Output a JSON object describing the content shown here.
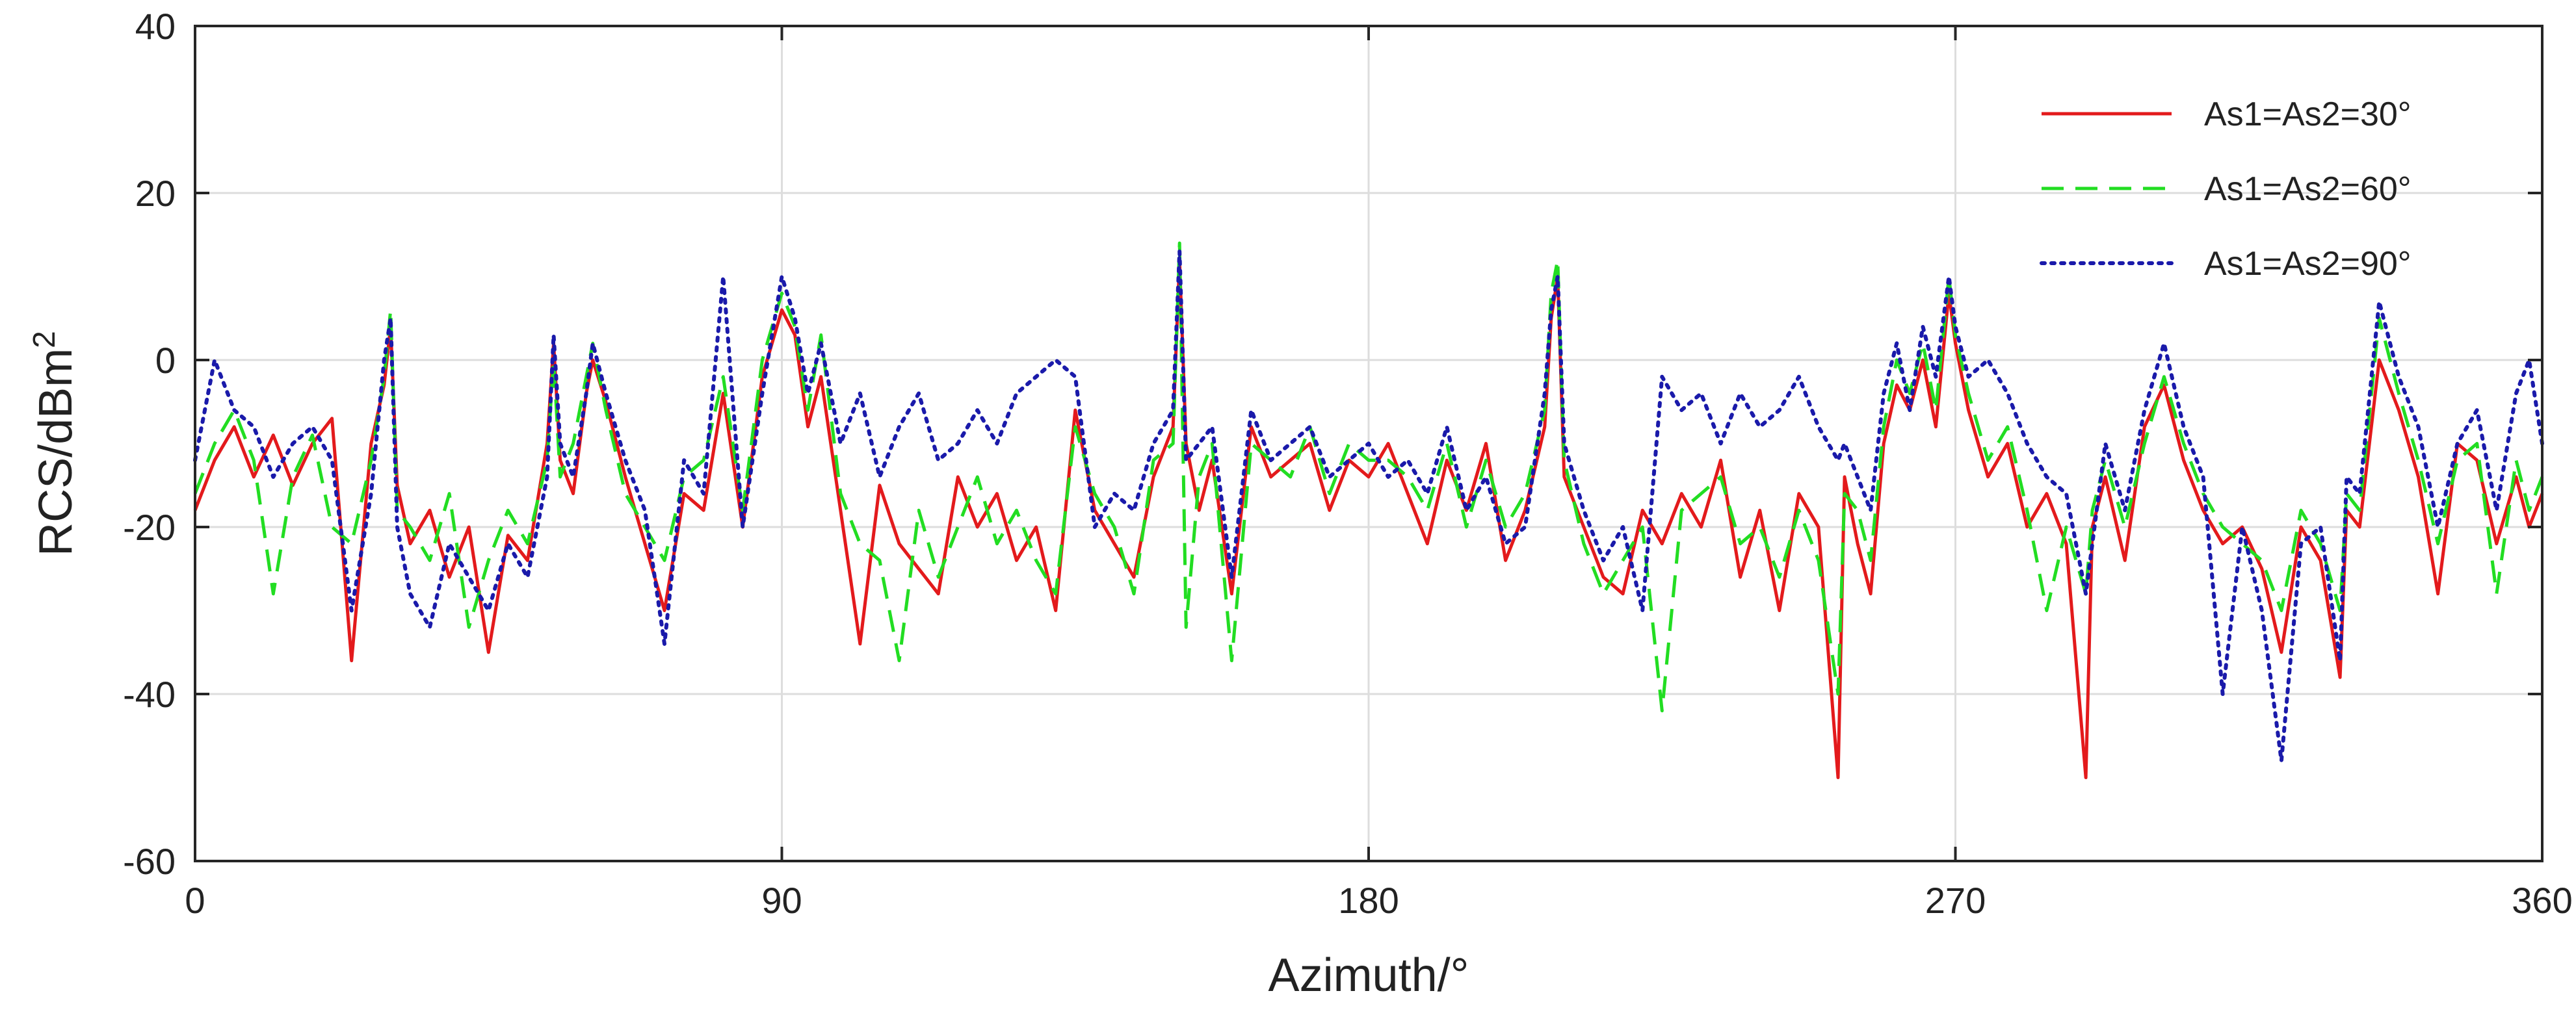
{
  "chart_data": {
    "type": "line",
    "xlabel": "Azimuth/°",
    "ylabel_base": "RCS/dBm",
    "ylabel_sup": "2",
    "xlim": [
      0,
      360
    ],
    "ylim": [
      -60,
      40
    ],
    "xticks": [
      0,
      90,
      180,
      270,
      360
    ],
    "yticks": [
      40,
      20,
      0,
      -20,
      -40,
      -60
    ],
    "xtick_labels": [
      "0",
      "90",
      "180",
      "270",
      "360"
    ],
    "ytick_labels": [
      "40",
      "20",
      "0",
      "-20",
      "-40",
      "-60"
    ],
    "grid": true,
    "legend_position": "top-right",
    "series": [
      {
        "name": "As1=As2=30°",
        "color": "#e31a1c",
        "style": "solid",
        "x": [
          0,
          3,
          6,
          9,
          12,
          15,
          18,
          21,
          24,
          27,
          29,
          30,
          31,
          33,
          36,
          39,
          42,
          45,
          48,
          51,
          54,
          55,
          56,
          58,
          60,
          61,
          63,
          66,
          69,
          72,
          75,
          78,
          81,
          84,
          87,
          90,
          92,
          94,
          96,
          99,
          102,
          105,
          108,
          111,
          114,
          117,
          120,
          123,
          126,
          129,
          132,
          135,
          138,
          141,
          144,
          147,
          150,
          151,
          152,
          154,
          156,
          159,
          162,
          165,
          168,
          171,
          174,
          177,
          180,
          183,
          186,
          189,
          192,
          195,
          198,
          201,
          204,
          207,
          208,
          209,
          210,
          213,
          216,
          219,
          222,
          225,
          228,
          231,
          234,
          237,
          240,
          243,
          246,
          249,
          252,
          253,
          255,
          257,
          259,
          261,
          263,
          265,
          267,
          269,
          270,
          272,
          275,
          278,
          281,
          284,
          287,
          290,
          291,
          293,
          296,
          299,
          302,
          305,
          308,
          311,
          314,
          317,
          320,
          323,
          326,
          329,
          330,
          332,
          335,
          338,
          341,
          344,
          347,
          350,
          353,
          356,
          358,
          360
        ],
        "y": [
          -18,
          -12,
          -8,
          -14,
          -9,
          -15,
          -10,
          -7,
          -36,
          -10,
          -3,
          4,
          -15,
          -22,
          -18,
          -26,
          -20,
          -35,
          -21,
          -24,
          -10,
          2,
          -12,
          -16,
          -4,
          0,
          -5,
          -14,
          -22,
          -30,
          -16,
          -18,
          -4,
          -20,
          -2,
          6,
          3,
          -8,
          -2,
          -18,
          -34,
          -15,
          -22,
          -25,
          -28,
          -14,
          -20,
          -16,
          -24,
          -20,
          -30,
          -6,
          -18,
          -22,
          -26,
          -14,
          -8,
          12,
          -10,
          -18,
          -12,
          -28,
          -8,
          -14,
          -12,
          -10,
          -18,
          -12,
          -14,
          -10,
          -16,
          -22,
          -12,
          -18,
          -10,
          -24,
          -18,
          -8,
          5,
          10,
          -14,
          -20,
          -26,
          -28,
          -18,
          -22,
          -16,
          -20,
          -12,
          -26,
          -18,
          -30,
          -16,
          -20,
          -50,
          -14,
          -22,
          -28,
          -10,
          -3,
          -6,
          0,
          -8,
          8,
          2,
          -6,
          -14,
          -10,
          -20,
          -16,
          -22,
          -50,
          -20,
          -14,
          -24,
          -8,
          -3,
          -12,
          -18,
          -22,
          -20,
          -25,
          -35,
          -20,
          -24,
          -38,
          -18,
          -20,
          0,
          -6,
          -14,
          -28,
          -10,
          -12,
          -22,
          -14,
          -20,
          -16
        ]
      },
      {
        "name": "As1=As2=60°",
        "color": "#22dd22",
        "style": "dashed",
        "x": [
          0,
          3,
          6,
          9,
          12,
          15,
          18,
          21,
          24,
          27,
          29,
          30,
          31,
          33,
          36,
          39,
          42,
          45,
          48,
          51,
          54,
          55,
          56,
          58,
          60,
          61,
          63,
          66,
          69,
          72,
          75,
          78,
          81,
          84,
          87,
          90,
          92,
          94,
          96,
          99,
          102,
          105,
          108,
          111,
          114,
          117,
          120,
          123,
          126,
          129,
          132,
          135,
          138,
          141,
          144,
          147,
          150,
          151,
          152,
          154,
          156,
          159,
          162,
          165,
          168,
          171,
          174,
          177,
          180,
          183,
          186,
          189,
          192,
          195,
          198,
          201,
          204,
          207,
          208,
          209,
          210,
          213,
          216,
          219,
          222,
          225,
          228,
          231,
          234,
          237,
          240,
          243,
          246,
          249,
          252,
          253,
          255,
          257,
          259,
          261,
          263,
          265,
          267,
          269,
          270,
          272,
          275,
          278,
          281,
          284,
          287,
          290,
          291,
          293,
          296,
          299,
          302,
          305,
          308,
          311,
          314,
          317,
          320,
          323,
          326,
          329,
          330,
          332,
          335,
          338,
          341,
          344,
          347,
          350,
          353,
          356,
          358,
          360
        ],
        "y": [
          -16,
          -10,
          -6,
          -12,
          -28,
          -14,
          -9,
          -20,
          -22,
          -12,
          -2,
          6,
          -18,
          -20,
          -24,
          -16,
          -32,
          -24,
          -18,
          -22,
          -12,
          0,
          -14,
          -10,
          -2,
          2,
          -6,
          -16,
          -20,
          -24,
          -14,
          -12,
          -2,
          -18,
          0,
          8,
          4,
          -6,
          3,
          -16,
          -22,
          -24,
          -36,
          -18,
          -26,
          -20,
          -14,
          -22,
          -18,
          -24,
          -28,
          -8,
          -16,
          -20,
          -28,
          -12,
          -10,
          14,
          -32,
          -14,
          -10,
          -36,
          -10,
          -12,
          -14,
          -8,
          -16,
          -10,
          -12,
          -12,
          -14,
          -18,
          -10,
          -20,
          -12,
          -20,
          -16,
          -6,
          8,
          12,
          -12,
          -22,
          -28,
          -24,
          -20,
          -42,
          -18,
          -16,
          -14,
          -22,
          -20,
          -26,
          -18,
          -24,
          -40,
          -16,
          -18,
          -24,
          -8,
          0,
          -4,
          2,
          -6,
          10,
          3,
          -4,
          -12,
          -8,
          -18,
          -30,
          -20,
          -28,
          -18,
          -12,
          -20,
          -10,
          -2,
          -10,
          -16,
          -20,
          -22,
          -24,
          -30,
          -18,
          -22,
          -30,
          -16,
          -18,
          5,
          -4,
          -12,
          -22,
          -12,
          -10,
          -28,
          -12,
          -18,
          -14
        ]
      },
      {
        "name": "As1=As2=90°",
        "color": "#1a1aaa",
        "style": "dotted",
        "x": [
          0,
          3,
          6,
          9,
          12,
          15,
          18,
          21,
          24,
          27,
          29,
          30,
          31,
          33,
          36,
          39,
          42,
          45,
          48,
          51,
          54,
          55,
          56,
          58,
          60,
          61,
          63,
          66,
          69,
          72,
          75,
          78,
          81,
          84,
          87,
          90,
          92,
          94,
          96,
          99,
          102,
          105,
          108,
          111,
          114,
          117,
          120,
          123,
          126,
          129,
          132,
          135,
          138,
          141,
          144,
          147,
          150,
          151,
          152,
          154,
          156,
          159,
          162,
          165,
          168,
          171,
          174,
          177,
          180,
          183,
          186,
          189,
          192,
          195,
          198,
          201,
          204,
          207,
          208,
          209,
          210,
          213,
          216,
          219,
          222,
          225,
          228,
          231,
          234,
          237,
          240,
          243,
          246,
          249,
          252,
          253,
          255,
          257,
          259,
          261,
          263,
          265,
          267,
          269,
          270,
          272,
          275,
          278,
          281,
          284,
          287,
          290,
          291,
          293,
          296,
          299,
          302,
          305,
          308,
          311,
          314,
          317,
          320,
          323,
          326,
          329,
          330,
          332,
          335,
          338,
          341,
          344,
          347,
          350,
          353,
          356,
          358,
          360
        ],
        "y": [
          -12,
          0,
          -6,
          -8,
          -14,
          -10,
          -8,
          -12,
          -30,
          -16,
          0,
          5,
          -20,
          -28,
          -32,
          -22,
          -26,
          -30,
          -22,
          -26,
          -14,
          3,
          -10,
          -14,
          -4,
          2,
          -4,
          -12,
          -18,
          -34,
          -12,
          -16,
          10,
          -20,
          -4,
          10,
          5,
          -4,
          2,
          -10,
          -4,
          -14,
          -8,
          -4,
          -12,
          -10,
          -6,
          -10,
          -4,
          -2,
          0,
          -2,
          -20,
          -16,
          -18,
          -10,
          -6,
          13,
          -12,
          -10,
          -8,
          -26,
          -6,
          -12,
          -10,
          -8,
          -14,
          -12,
          -10,
          -14,
          -12,
          -16,
          -8,
          -18,
          -14,
          -22,
          -20,
          -4,
          6,
          10,
          -10,
          -18,
          -24,
          -20,
          -30,
          -2,
          -6,
          -4,
          -10,
          -4,
          -8,
          -6,
          -2,
          -8,
          -12,
          -10,
          -14,
          -18,
          -4,
          2,
          -6,
          4,
          -2,
          10,
          4,
          -2,
          0,
          -4,
          -10,
          -14,
          -16,
          -28,
          -22,
          -10,
          -18,
          -6,
          2,
          -8,
          -14,
          -40,
          -20,
          -30,
          -48,
          -22,
          -20,
          -36,
          -14,
          -16,
          7,
          -2,
          -8,
          -20,
          -10,
          -6,
          -18,
          -4,
          0,
          -10
        ]
      }
    ]
  }
}
